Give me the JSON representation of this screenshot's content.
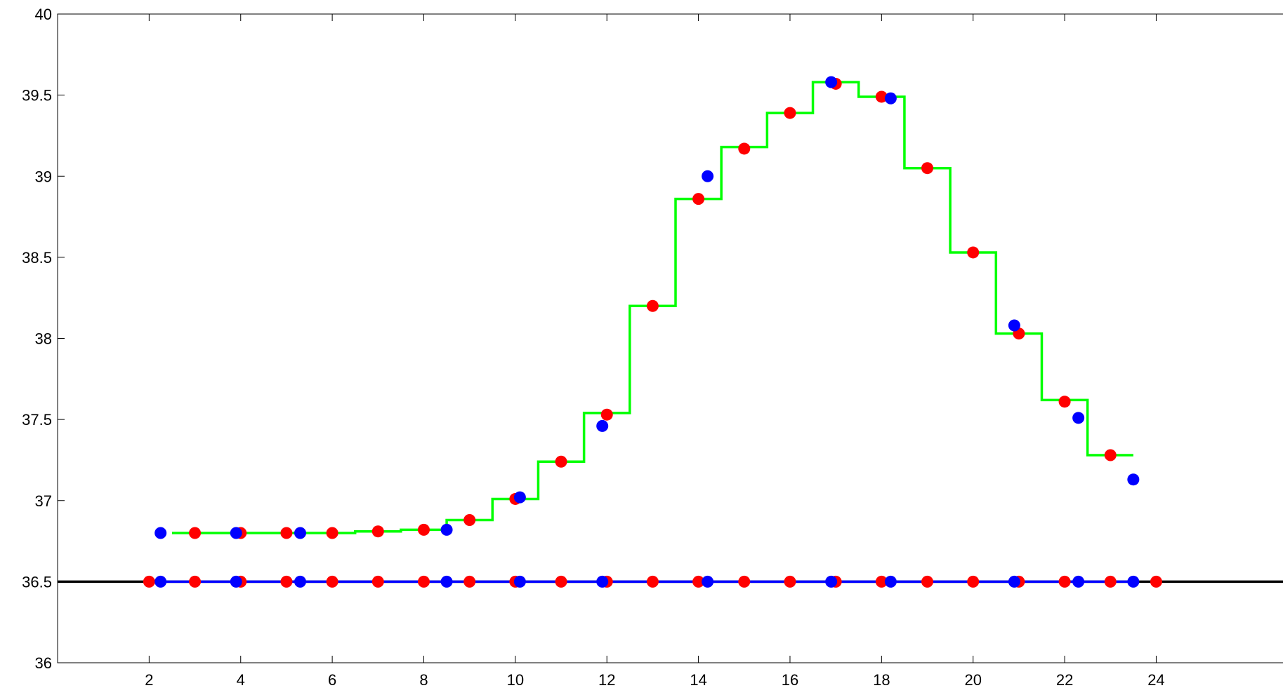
{
  "chart_data": {
    "type": "scatter",
    "title": "",
    "xlabel": "",
    "ylabel": "",
    "xlim": [
      0,
      27
    ],
    "ylim": [
      36,
      40
    ],
    "x_ticks": [
      2,
      4,
      6,
      8,
      10,
      12,
      14,
      16,
      18,
      20,
      22,
      24
    ],
    "y_ticks": [
      36,
      36.5,
      37,
      37.5,
      38,
      38.5,
      39,
      39.5,
      40
    ],
    "x_tick_labels": [
      "2",
      "4",
      "6",
      "8",
      "10",
      "12",
      "14",
      "16",
      "18",
      "20",
      "22",
      "24"
    ],
    "y_tick_labels": [
      "36",
      "36.5",
      "37",
      "37.5",
      "38",
      "38.5",
      "39",
      "39.5",
      "40"
    ],
    "grid": false,
    "colors": {
      "red": "#ff0000",
      "blue": "#0000ff",
      "green": "#00ff00",
      "black": "#000000"
    },
    "reference_line": {
      "y": 36.5,
      "color": "#000000"
    },
    "baseline_line": {
      "y": 36.5,
      "x_range": [
        2.25,
        23.5
      ],
      "color": "#0000ff"
    },
    "series": [
      {
        "kind": "points",
        "color": "#ff0000",
        "x": [
          3,
          4,
          5,
          6,
          7,
          8,
          9,
          10,
          11,
          12,
          13,
          14,
          15,
          16,
          17,
          18,
          19,
          20,
          21,
          22,
          23
        ],
        "y": [
          36.8,
          36.8,
          36.8,
          36.8,
          36.81,
          36.82,
          36.88,
          37.01,
          37.24,
          37.53,
          38.2,
          38.86,
          39.17,
          39.39,
          39.57,
          39.49,
          39.05,
          38.53,
          38.03,
          37.61,
          37.28
        ]
      },
      {
        "kind": "points",
        "color": "#0000ff",
        "x": [
          2.25,
          3.9,
          5.3,
          8.5,
          10.1,
          11.9,
          14.2,
          16.9,
          18.2,
          20.9,
          22.3,
          23.5
        ],
        "y": [
          36.8,
          36.8,
          36.8,
          36.82,
          37.02,
          37.46,
          39.0,
          39.58,
          39.48,
          38.08,
          37.51,
          37.13
        ]
      },
      {
        "kind": "points",
        "color": "#ff0000",
        "x": [
          2,
          3,
          4,
          5,
          6,
          7,
          8,
          9,
          10,
          11,
          12,
          13,
          14,
          15,
          16,
          17,
          18,
          19,
          20,
          21,
          22,
          23,
          24
        ],
        "y": [
          36.5,
          36.5,
          36.5,
          36.5,
          36.5,
          36.5,
          36.5,
          36.5,
          36.5,
          36.5,
          36.5,
          36.5,
          36.5,
          36.5,
          36.5,
          36.5,
          36.5,
          36.5,
          36.5,
          36.5,
          36.5,
          36.5,
          36.5
        ]
      },
      {
        "kind": "points",
        "color": "#0000ff",
        "x": [
          2.25,
          3.9,
          5.3,
          8.5,
          10.1,
          11.9,
          14.2,
          16.9,
          18.2,
          20.9,
          22.3,
          23.5
        ],
        "y": [
          36.5,
          36.5,
          36.5,
          36.5,
          36.5,
          36.5,
          36.5,
          36.5,
          36.5,
          36.5,
          36.5,
          36.5
        ]
      },
      {
        "kind": "step",
        "color": "#00ff00",
        "x": [
          3,
          4,
          5,
          6,
          7,
          8,
          9,
          10,
          11,
          12,
          13,
          14,
          15,
          16,
          17,
          18,
          19,
          20,
          21,
          22,
          23
        ],
        "y": [
          36.8,
          36.8,
          36.8,
          36.8,
          36.81,
          36.82,
          36.88,
          37.01,
          37.24,
          37.54,
          38.2,
          38.86,
          39.18,
          39.39,
          39.58,
          39.49,
          39.05,
          38.53,
          38.03,
          37.62,
          37.28
        ]
      }
    ]
  }
}
